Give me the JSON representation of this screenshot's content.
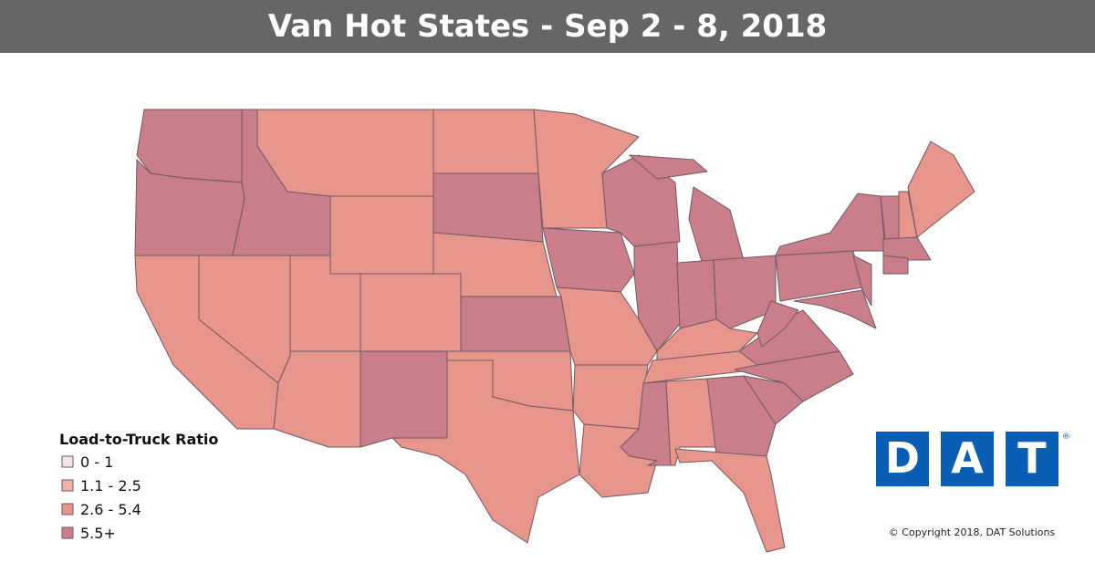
{
  "header": {
    "title": "Van Hot States - Sep 2 - 8, 2018"
  },
  "legend": {
    "title": "Load-to-Truck Ratio",
    "items": [
      {
        "label": "0 - 1",
        "color": "#f2e6e6"
      },
      {
        "label": "1.1 - 2.5",
        "color": "#f0b2a8"
      },
      {
        "label": "2.6 - 5.4",
        "color": "#e8958b"
      },
      {
        "label": "5.5+",
        "color": "#c97e8a"
      }
    ]
  },
  "logo": {
    "letters": [
      "D",
      "A",
      "T"
    ],
    "mark": "®"
  },
  "copyright": "© Copyright 2018, DAT Solutions"
}
